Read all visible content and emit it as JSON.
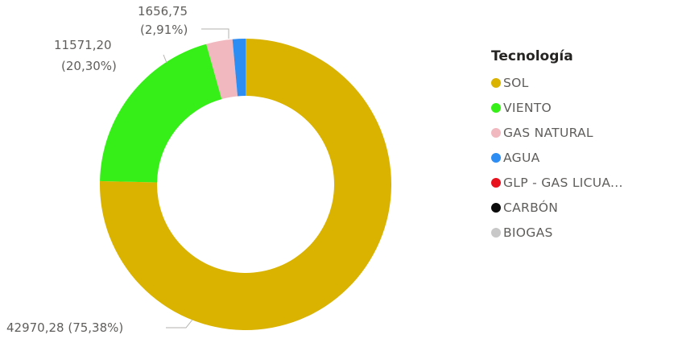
{
  "chart_data": {
    "type": "pie",
    "variant": "donut",
    "legend_title": "Tecnología",
    "legend_position": "right",
    "slices": [
      {
        "name": "SOL",
        "value": 42970.28,
        "percent": 75.38,
        "color": "#d9b300",
        "label": "42970,28 (75,38%)"
      },
      {
        "name": "VIENTO",
        "value": 11571.2,
        "percent": 20.3,
        "color": "#37ef18",
        "label_value": "11571,20",
        "label_percent": "(20,30%)"
      },
      {
        "name": "GAS NATURAL",
        "value": 1656.75,
        "percent": 2.91,
        "color": "#f2b8bf",
        "label_value": "1656,75",
        "label_percent": "(2,91%)"
      },
      {
        "name": "AGUA",
        "value": 820,
        "percent": 1.44,
        "color": "#2e8df2"
      },
      {
        "name": "GLP - GAS LICUA...",
        "value": 0,
        "percent": 0,
        "color": "#e8121e"
      },
      {
        "name": "CARBÓN",
        "value": 0,
        "percent": 0,
        "color": "#0b0b0b"
      },
      {
        "name": "BIOGAS",
        "value": 0,
        "percent": 0,
        "color": "#c8c8c8"
      }
    ]
  }
}
